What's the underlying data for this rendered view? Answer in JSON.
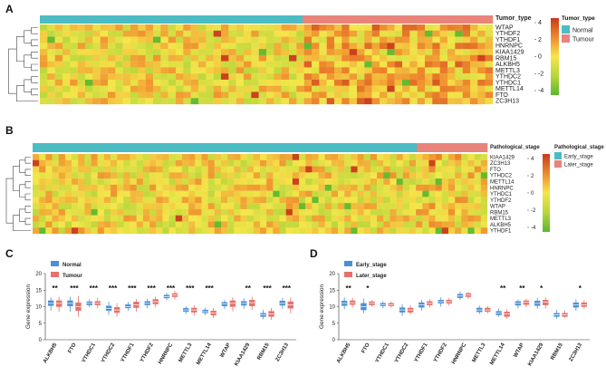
{
  "panels": {
    "A": {
      "label": "A",
      "annotation_title": "Tumor_type",
      "groups": [
        {
          "name": "Normal",
          "color": "#4bbcc4",
          "fraction": 0.58
        },
        {
          "name": "Tumour",
          "color": "#e8847c",
          "fraction": 0.42
        }
      ],
      "rows": [
        "WTAP",
        "YTHDF2",
        "YTHDF1",
        "HNRNPC",
        "KIAA1429",
        "RBM15",
        "ALKBH5",
        "METTL3",
        "YTHDC2",
        "YTHDC1",
        "METTL14",
        "FTO",
        "ZC3H13"
      ],
      "scale_ticks": [
        "4",
        "2",
        "0",
        "-2",
        "-4"
      ],
      "n_cols": 60
    },
    "B": {
      "label": "B",
      "annotation_title": "Pathological_stage",
      "groups": [
        {
          "name": "Early_stage",
          "color": "#4bbcc4",
          "fraction": 0.845
        },
        {
          "name": "Later_stage",
          "color": "#e8847c",
          "fraction": 0.155
        }
      ],
      "rows": [
        "KIAA1429",
        "ZC3H13",
        "FTO",
        "YTHDC2",
        "METTL14",
        "HNRNPC",
        "YTHDC1",
        "YTHDF2",
        "WTAP",
        "RBM15",
        "METTL3",
        "ALKBH5",
        "YTHDF1"
      ],
      "scale_ticks": [
        "4",
        "2",
        "0",
        "-2",
        "-4"
      ],
      "n_cols": 70
    },
    "C": {
      "label": "C",
      "ylabel": "Gene expression",
      "legend": [
        {
          "name": "Normal",
          "color": "#4a90d9"
        },
        {
          "name": "Tumour",
          "color": "#e8706b"
        }
      ],
      "yticks": [
        "0",
        "5",
        "10",
        "15",
        "20"
      ]
    },
    "D": {
      "label": "D",
      "ylabel": "Gene expression",
      "legend": [
        {
          "name": "Early_stage",
          "color": "#4a90d9"
        },
        {
          "name": "Later_stage",
          "color": "#e8706b"
        }
      ],
      "yticks": [
        "0",
        "5",
        "10",
        "15",
        "20"
      ]
    }
  },
  "chart_data": [
    {
      "type": "heatmap",
      "title": "A",
      "rows": [
        "WTAP",
        "YTHDF2",
        "YTHDF1",
        "HNRNPC",
        "KIAA1429",
        "RBM15",
        "ALKBH5",
        "METTL3",
        "YTHDC2",
        "YTHDC1",
        "METTL14",
        "FTO",
        "ZC3H13"
      ],
      "annotation": "Tumor_type",
      "colorbar": {
        "min": -4,
        "max": 4,
        "low_color": "#5cb82e",
        "mid_color": "#f5e64a",
        "high_color": "#c83a1a"
      }
    },
    {
      "type": "heatmap",
      "title": "B",
      "rows": [
        "KIAA1429",
        "ZC3H13",
        "FTO",
        "YTHDC2",
        "METTL14",
        "HNRNPC",
        "YTHDC1",
        "YTHDF2",
        "WTAP",
        "RBM15",
        "METTL3",
        "ALKBH5",
        "YTHDF1"
      ],
      "annotation": "Pathological_stage",
      "colorbar": {
        "min": -4,
        "max": 4,
        "low_color": "#5cb82e",
        "mid_color": "#f5e64a",
        "high_color": "#c83a1a"
      }
    },
    {
      "type": "bar",
      "subtype": "boxplot",
      "title": "C",
      "ylabel": "Gene expression",
      "ylim": [
        0,
        20
      ],
      "categories": [
        "ALKBH5",
        "FTO",
        "YTHDC1",
        "YTHDC2",
        "YTHDF1",
        "YTHDF2",
        "HNRNPC",
        "METTL3",
        "METTL14",
        "WTAP",
        "KIAA1429",
        "RBM15",
        "ZC3H13"
      ],
      "significance": [
        "**",
        "***",
        "***",
        "***",
        "***",
        "***",
        "***",
        "***",
        "***",
        "",
        "**",
        "***",
        "***"
      ],
      "series": [
        {
          "name": "Normal",
          "medians": [
            11.0,
            11.0,
            11.0,
            9.5,
            10.0,
            11.0,
            13.0,
            9.0,
            8.5,
            10.8,
            11.0,
            7.5,
            11.0
          ],
          "q1": [
            10.3,
            10.2,
            10.5,
            8.8,
            9.6,
            10.5,
            12.6,
            8.5,
            8.1,
            10.2,
            10.4,
            7.0,
            10.4
          ],
          "q3": [
            11.8,
            11.8,
            11.5,
            10.2,
            10.6,
            11.6,
            13.5,
            9.5,
            9.0,
            11.3,
            11.6,
            8.0,
            11.7
          ],
          "min": [
            8.8,
            8.5,
            9.8,
            7.5,
            8.8,
            9.5,
            12.0,
            7.8,
            7.4,
            9.3,
            9.4,
            6.2,
            9.3
          ],
          "max": [
            12.8,
            13.0,
            12.2,
            11.5,
            11.4,
            12.4,
            14.1,
            10.2,
            9.7,
            12.0,
            12.5,
            9.0,
            12.6
          ]
        },
        {
          "name": "Tumour",
          "medians": [
            11.0,
            10.0,
            11.0,
            9.0,
            10.5,
            11.5,
            13.5,
            9.0,
            8.0,
            11.0,
            11.2,
            7.8,
            10.5
          ],
          "q1": [
            10.0,
            8.8,
            10.5,
            8.2,
            9.7,
            10.8,
            13.0,
            8.3,
            7.4,
            10.0,
            10.2,
            7.0,
            9.5
          ],
          "q3": [
            11.8,
            11.2,
            11.6,
            9.8,
            11.4,
            12.2,
            14.0,
            9.6,
            8.7,
            11.8,
            12.0,
            8.6,
            11.5
          ],
          "min": [
            8.5,
            7.0,
            9.5,
            7.0,
            8.5,
            9.8,
            12.2,
            7.4,
            6.6,
            8.6,
            9.0,
            6.0,
            8.0
          ],
          "max": [
            13.0,
            13.2,
            12.6,
            11.0,
            12.3,
            13.0,
            14.8,
            10.4,
            9.6,
            12.8,
            13.0,
            9.6,
            12.8
          ]
        }
      ]
    },
    {
      "type": "bar",
      "subtype": "boxplot",
      "title": "D",
      "ylabel": "Gene expression",
      "ylim": [
        0,
        20
      ],
      "categories": [
        "ALKBH5",
        "FTO",
        "YTHDC1",
        "YTHDC2",
        "YTHDF1",
        "YTHDF2",
        "HNRNPC",
        "METTL3",
        "METTL14",
        "WTAP",
        "KIAA1429",
        "RBM15",
        "ZC3H13"
      ],
      "significance": [
        "**",
        "*",
        "",
        "",
        "",
        "",
        "",
        "",
        "**",
        "**",
        "*",
        "",
        "*"
      ],
      "series": [
        {
          "name": "Early_stage",
          "medians": [
            11.0,
            10.0,
            10.5,
            9.0,
            10.5,
            11.5,
            13.2,
            9.0,
            8.0,
            11.0,
            11.0,
            7.5,
            10.5
          ],
          "q1": [
            10.3,
            9.0,
            10.2,
            8.3,
            9.8,
            11.0,
            12.7,
            8.4,
            7.5,
            10.4,
            10.3,
            7.0,
            9.8
          ],
          "q3": [
            11.7,
            11.0,
            11.0,
            9.7,
            11.2,
            12.0,
            13.8,
            9.6,
            8.6,
            11.6,
            11.7,
            8.0,
            11.2
          ],
          "min": [
            9.2,
            8.0,
            9.6,
            7.2,
            8.8,
            10.0,
            12.0,
            7.8,
            6.9,
            9.5,
            9.4,
            6.3,
            8.8
          ],
          "max": [
            12.8,
            12.4,
            11.6,
            10.8,
            12.0,
            12.8,
            14.6,
            10.3,
            9.4,
            12.2,
            12.6,
            9.0,
            12.2
          ]
        },
        {
          "name": "Later_stage",
          "medians": [
            11.2,
            11.0,
            10.5,
            9.0,
            11.0,
            11.5,
            13.5,
            9.0,
            7.8,
            11.3,
            11.4,
            7.5,
            10.5
          ],
          "q1": [
            10.6,
            10.5,
            10.2,
            8.3,
            10.5,
            11.0,
            13.0,
            8.5,
            7.0,
            10.6,
            10.5,
            7.0,
            10.0
          ],
          "q3": [
            11.8,
            11.5,
            11.0,
            9.6,
            11.6,
            12.0,
            14.0,
            9.6,
            8.4,
            11.8,
            12.0,
            8.0,
            11.2
          ],
          "min": [
            9.8,
            10.0,
            9.7,
            7.6,
            9.7,
            10.3,
            12.3,
            7.9,
            6.3,
            9.8,
            9.4,
            6.6,
            9.3
          ],
          "max": [
            12.6,
            12.0,
            11.6,
            10.4,
            12.2,
            12.6,
            14.5,
            10.2,
            9.2,
            12.4,
            12.8,
            8.8,
            12.0
          ]
        }
      ]
    }
  ]
}
